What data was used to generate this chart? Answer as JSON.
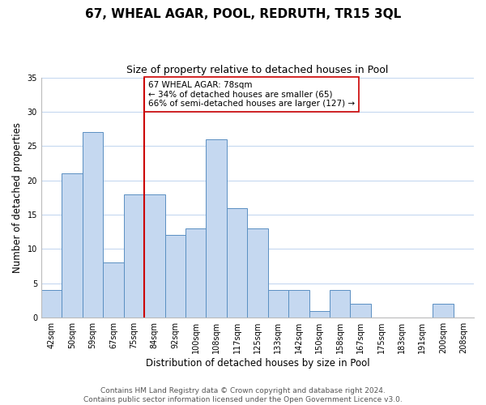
{
  "title": "67, WHEAL AGAR, POOL, REDRUTH, TR15 3QL",
  "subtitle": "Size of property relative to detached houses in Pool",
  "xlabel": "Distribution of detached houses by size in Pool",
  "ylabel": "Number of detached properties",
  "footer_line1": "Contains HM Land Registry data © Crown copyright and database right 2024.",
  "footer_line2": "Contains public sector information licensed under the Open Government Licence v3.0.",
  "bin_labels": [
    "42sqm",
    "50sqm",
    "59sqm",
    "67sqm",
    "75sqm",
    "84sqm",
    "92sqm",
    "100sqm",
    "108sqm",
    "117sqm",
    "125sqm",
    "133sqm",
    "142sqm",
    "150sqm",
    "158sqm",
    "167sqm",
    "175sqm",
    "183sqm",
    "191sqm",
    "200sqm",
    "208sqm"
  ],
  "bar_values": [
    4,
    21,
    27,
    8,
    18,
    18,
    12,
    13,
    26,
    16,
    13,
    4,
    4,
    1,
    4,
    2,
    0,
    0,
    0,
    2,
    0
  ],
  "bar_color": "#c5d8f0",
  "bar_edge_color": "#5a8fc2",
  "vline_color": "#cc0000",
  "vline_bin_index": 4,
  "annotation_text": "67 WHEAL AGAR: 78sqm\n← 34% of detached houses are smaller (65)\n66% of semi-detached houses are larger (127) →",
  "annotation_box_color": "#ffffff",
  "annotation_box_edge_color": "#cc0000",
  "ylim": [
    0,
    35
  ],
  "yticks": [
    0,
    5,
    10,
    15,
    20,
    25,
    30,
    35
  ],
  "background_color": "#ffffff",
  "grid_color": "#c5d8f0",
  "title_fontsize": 11,
  "subtitle_fontsize": 9,
  "axis_label_fontsize": 8.5,
  "tick_fontsize": 7,
  "annotation_fontsize": 7.5,
  "footer_fontsize": 6.5
}
